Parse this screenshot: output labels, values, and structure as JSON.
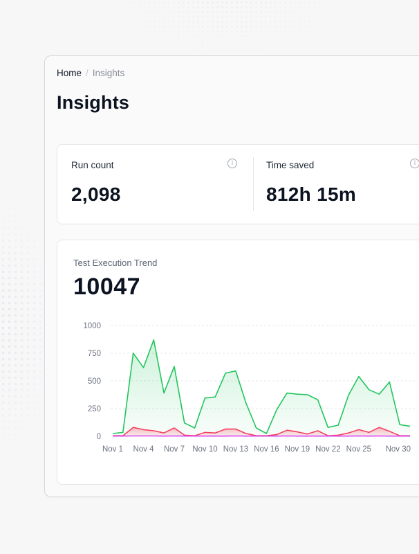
{
  "breadcrumb": {
    "home": "Home",
    "separator": "/",
    "current": "Insights"
  },
  "page": {
    "title": "Insights"
  },
  "stats": {
    "run_count": {
      "label": "Run count",
      "value": "2,098"
    },
    "time_saved": {
      "label": "Time saved",
      "value": "812h 15m"
    },
    "info_icon": "info-circle-icon"
  },
  "trend": {
    "title": "Test Execution Trend",
    "total": "10047"
  },
  "colors": {
    "passed": "#22c55e",
    "failed": "#f43f5e",
    "other": "#d946ef"
  },
  "chart_data": {
    "type": "area",
    "title": "Test Execution Trend",
    "ylim": [
      0,
      1000
    ],
    "yticks": [
      0,
      250,
      500,
      750,
      1000
    ],
    "grid": true,
    "x": [
      "Nov 1",
      "Nov 2",
      "Nov 3",
      "Nov 4",
      "Nov 5",
      "Nov 6",
      "Nov 7",
      "Nov 8",
      "Nov 9",
      "Nov 10",
      "Nov 11",
      "Nov 12",
      "Nov 13",
      "Nov 14",
      "Nov 15",
      "Nov 16",
      "Nov 17",
      "Nov 18",
      "Nov 19",
      "Nov 20",
      "Nov 21",
      "Nov 22",
      "Nov 23",
      "Nov 24",
      "Nov 25",
      "Nov 26",
      "Nov 27",
      "Nov 28",
      "Nov 29",
      "Nov 30"
    ],
    "xticks": [
      "Nov 1",
      "Nov 4",
      "Nov 7",
      "Nov 10",
      "Nov 13",
      "Nov 16",
      "Nov 19",
      "Nov 22",
      "Nov 25",
      "Nov 30"
    ],
    "series": [
      {
        "values": [
          25,
          35,
          750,
          620,
          870,
          390,
          630,
          120,
          75,
          345,
          355,
          570,
          590,
          300,
          75,
          25,
          240,
          390,
          380,
          375,
          330,
          80,
          100,
          370,
          540,
          420,
          380,
          490,
          105,
          90
        ]
      },
      {
        "values": [
          5,
          5,
          80,
          60,
          50,
          30,
          75,
          10,
          5,
          35,
          30,
          65,
          65,
          25,
          5,
          5,
          15,
          55,
          40,
          20,
          50,
          5,
          10,
          30,
          60,
          35,
          80,
          45,
          5,
          5
        ]
      },
      {
        "values": [
          2,
          2,
          3,
          3,
          3,
          2,
          3,
          2,
          2,
          2,
          2,
          2,
          3,
          2,
          2,
          2,
          2,
          3,
          2,
          2,
          2,
          2,
          2,
          2,
          3,
          2,
          3,
          2,
          2,
          2
        ]
      }
    ]
  }
}
